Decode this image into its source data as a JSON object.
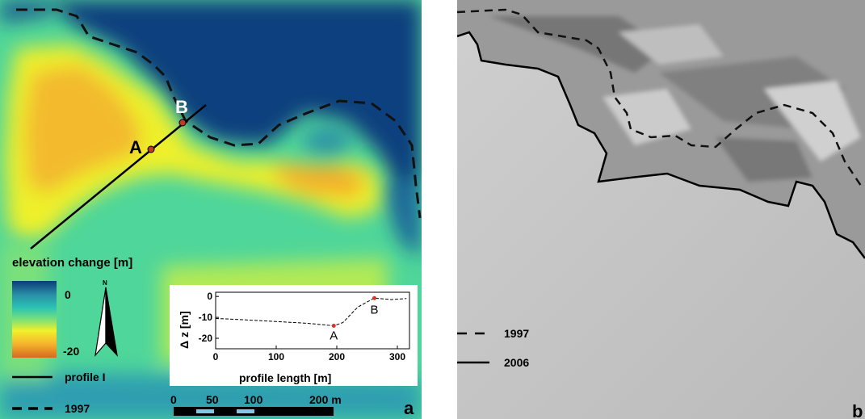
{
  "panel_a": {
    "panel_letter": "a",
    "point_a": "A",
    "point_b": "B",
    "legend": {
      "title": "elevation change [m]",
      "max_label": "0",
      "min_label": "-20",
      "colors": [
        "#0a3c7a",
        "#2a8fa6",
        "#2bc3b4",
        "#78e07a",
        "#f2f02a",
        "#f5b52c",
        "#d66a20"
      ],
      "profile_label": "profile I",
      "line_1997_label": "1997"
    },
    "north_label": "N",
    "scalebar": {
      "ticks": [
        "0",
        "50",
        "100",
        "200 m"
      ]
    },
    "inset_chart": {
      "ylabel": "Δ z [m]",
      "xlabel": "profile length [m]"
    }
  },
  "panel_b": {
    "panel_letter": "b",
    "legend_1997": "1997",
    "legend_2006": "2006"
  },
  "chart_data": {
    "type": "line",
    "xlabel": "profile length [m]",
    "ylabel": "Δ z [m]",
    "xlim": [
      0,
      320
    ],
    "ylim": [
      -25,
      2
    ],
    "x_ticks": [
      "0",
      "100",
      "200",
      "300"
    ],
    "y_ticks": [
      "0",
      "-10",
      "-20"
    ],
    "x": [
      0,
      50,
      100,
      150,
      195,
      210,
      235,
      262,
      290,
      315
    ],
    "values": [
      -10.5,
      -11.2,
      -12,
      -12.8,
      -14,
      -12.5,
      -5,
      -0.8,
      -1.5,
      -1
    ],
    "annotations": [
      {
        "text": "A",
        "x": 195,
        "y": -14
      },
      {
        "text": "B",
        "x": 262,
        "y": -0.8
      }
    ]
  }
}
